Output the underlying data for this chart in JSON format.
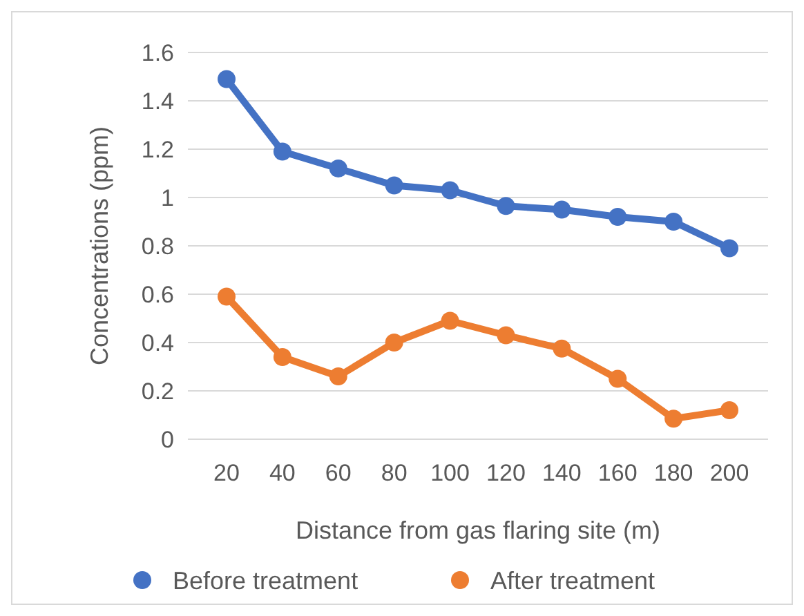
{
  "chart_data": {
    "type": "line",
    "xlabel": "Distance from gas flaring site (m)",
    "ylabel": "Concentrations (ppm)",
    "categories": [
      "20",
      "40",
      "60",
      "80",
      "100",
      "120",
      "140",
      "160",
      "180",
      "200"
    ],
    "series": [
      {
        "name": "Before treatment",
        "color": "#4472c4",
        "values": [
          1.49,
          1.19,
          1.12,
          1.05,
          1.03,
          0.965,
          0.95,
          0.92,
          0.9,
          0.79
        ]
      },
      {
        "name": "After treatment",
        "color": "#ed7d31",
        "values": [
          0.59,
          0.34,
          0.26,
          0.4,
          0.49,
          0.43,
          0.375,
          0.25,
          0.085,
          0.12
        ]
      }
    ],
    "ylim": [
      0,
      1.6
    ],
    "yticks": [
      0,
      0.2,
      0.4,
      0.6,
      0.8,
      1,
      1.2,
      1.4,
      1.6
    ],
    "grid": "y",
    "legend": "bottom",
    "marker": "circle",
    "line_style": "solid"
  }
}
